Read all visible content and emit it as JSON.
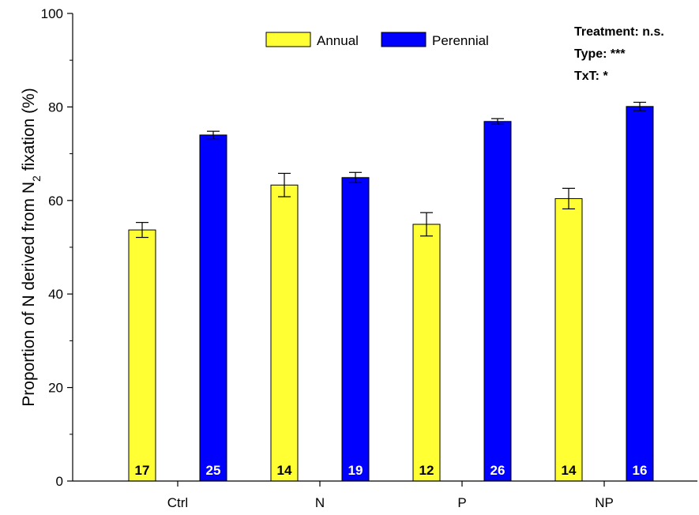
{
  "chart_data": {
    "type": "bar",
    "categories": [
      "Ctrl",
      "N",
      "P",
      "NP"
    ],
    "series": [
      {
        "name": "Annual",
        "color": "#ffff33",
        "values": [
          53.7,
          63.3,
          54.9,
          60.4
        ],
        "errors": [
          1.6,
          2.5,
          2.5,
          2.2
        ],
        "n": [
          "17",
          "14",
          "12",
          "14"
        ],
        "n_label_color": "#000000"
      },
      {
        "name": "Perennial",
        "color": "#0000ff",
        "values": [
          74.0,
          64.9,
          76.9,
          80.1
        ],
        "errors": [
          0.8,
          1.1,
          0.6,
          0.9
        ],
        "n": [
          "25",
          "19",
          "26",
          "16"
        ],
        "n_label_color": "#ffffff"
      }
    ],
    "ylabel": {
      "prefix": "Proportion of N derived from N",
      "subscript": "2",
      "suffix": " fixation (%)"
    },
    "xlabel": "",
    "ylim": [
      0,
      100
    ],
    "yticks": [
      0,
      20,
      40,
      60,
      80,
      100
    ],
    "grid": false,
    "legend_position": "top-center",
    "annotations": [
      "Treatment: n.s.",
      "Type: ***",
      "TxT: *"
    ]
  }
}
